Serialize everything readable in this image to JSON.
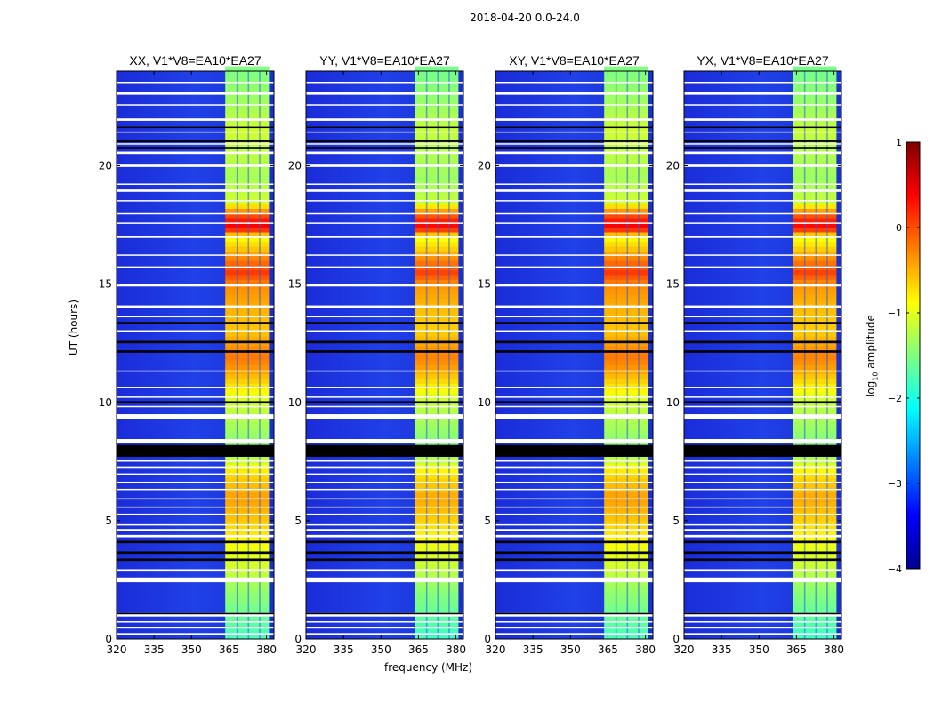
{
  "chart_data": {
    "type": "heatmap",
    "title": "2018-04-20 0.0-24.0",
    "ylabel": "UT (hours)",
    "xlabel": "frequency (MHz)",
    "xlim": [
      320,
      383
    ],
    "ylim": [
      0,
      24
    ],
    "xticks": [
      320,
      335,
      350,
      365,
      380
    ],
    "yticks": [
      0,
      5,
      10,
      15,
      20
    ],
    "panels": [
      {
        "name": "xx",
        "title": "XX, V1*V8=EA10*EA27"
      },
      {
        "name": "yy",
        "title": "YY, V1*V8=EA10*EA27"
      },
      {
        "name": "xy",
        "title": "XY, V1*V8=EA10*EA27"
      },
      {
        "name": "yx",
        "title": "YX, V1*V8=EA10*EA27"
      }
    ],
    "colorbar": {
      "label": "log",
      "label_sub": "10",
      "label_rest": " amplitude",
      "range": [
        -4,
        1
      ],
      "ticks": [
        1,
        0,
        -1,
        -2,
        -3,
        -4
      ],
      "tick_labels": [
        "1",
        "0",
        "−1",
        "−2",
        "−3",
        "−4"
      ],
      "colormap": "jet"
    },
    "signal_band_mhz": [
      363.5,
      381
    ],
    "flagged_hours": [
      [
        0.15,
        0.25
      ],
      [
        0.45,
        0.5
      ],
      [
        0.7,
        0.75
      ],
      [
        0.95,
        1.1
      ],
      [
        2.4,
        2.6
      ],
      [
        2.85,
        2.95
      ],
      [
        4.3,
        4.4
      ],
      [
        4.55,
        4.65
      ],
      [
        4.8,
        4.85
      ],
      [
        5.25,
        5.3
      ],
      [
        5.55,
        5.6
      ],
      [
        5.9,
        5.95
      ],
      [
        6.3,
        6.35
      ],
      [
        6.6,
        6.65
      ],
      [
        6.95,
        7.0
      ],
      [
        7.2,
        7.3
      ],
      [
        7.5,
        7.55
      ],
      [
        8.3,
        8.45
      ],
      [
        9.3,
        9.5
      ],
      [
        9.8,
        9.85
      ],
      [
        10.2,
        10.25
      ],
      [
        10.6,
        10.65
      ],
      [
        11.3,
        11.35
      ],
      [
        13.0,
        13.05
      ],
      [
        13.6,
        13.65
      ],
      [
        14.0,
        14.1
      ],
      [
        14.9,
        15.0
      ],
      [
        15.7,
        15.75
      ],
      [
        16.2,
        16.25
      ],
      [
        16.95,
        17.05
      ],
      [
        17.55,
        17.6
      ],
      [
        17.95,
        18.0
      ],
      [
        18.5,
        18.55
      ],
      [
        18.9,
        19.0
      ],
      [
        19.2,
        19.25
      ],
      [
        19.95,
        20.05
      ],
      [
        20.5,
        20.6
      ],
      [
        20.9,
        20.95
      ],
      [
        21.4,
        21.45
      ],
      [
        21.9,
        22.0
      ],
      [
        22.55,
        22.6
      ],
      [
        23.0,
        23.1
      ],
      [
        23.5,
        23.55
      ]
    ],
    "missing_hours": [
      [
        1.05,
        1.1
      ],
      [
        3.3,
        3.4
      ],
      [
        3.6,
        3.7
      ],
      [
        4.05,
        4.15
      ],
      [
        7.7,
        8.2
      ],
      [
        9.95,
        10.05
      ],
      [
        12.1,
        12.2
      ],
      [
        12.5,
        12.6
      ],
      [
        13.3,
        13.4
      ],
      [
        20.7,
        20.8
      ],
      [
        21.0,
        21.1
      ],
      [
        21.6,
        21.65
      ]
    ],
    "band_log_amplitude_by_hour": [
      [
        0.0,
        -1.8
      ],
      [
        1.0,
        -1.6
      ],
      [
        2.0,
        -1.4
      ],
      [
        3.0,
        -1.1
      ],
      [
        4.0,
        -0.9
      ],
      [
        5.0,
        -0.6
      ],
      [
        6.0,
        -0.4
      ],
      [
        7.0,
        -0.7
      ],
      [
        8.0,
        -1.5
      ],
      [
        9.0,
        -1.3
      ],
      [
        10.0,
        -1.1
      ],
      [
        11.0,
        -0.6
      ],
      [
        11.6,
        -0.3
      ],
      [
        12.0,
        -0.2
      ],
      [
        13.0,
        -0.6
      ],
      [
        14.0,
        -0.5
      ],
      [
        15.0,
        -0.3
      ],
      [
        15.5,
        0.1
      ],
      [
        16.0,
        -0.2
      ],
      [
        16.5,
        -0.6
      ],
      [
        17.0,
        -0.9
      ],
      [
        17.4,
        0.45
      ],
      [
        17.8,
        0.2
      ],
      [
        18.5,
        -1.1
      ],
      [
        19.5,
        -1.3
      ],
      [
        20.5,
        -1.2
      ],
      [
        21.5,
        -1.1
      ],
      [
        22.5,
        -1.3
      ],
      [
        24.0,
        -1.5
      ]
    ]
  }
}
